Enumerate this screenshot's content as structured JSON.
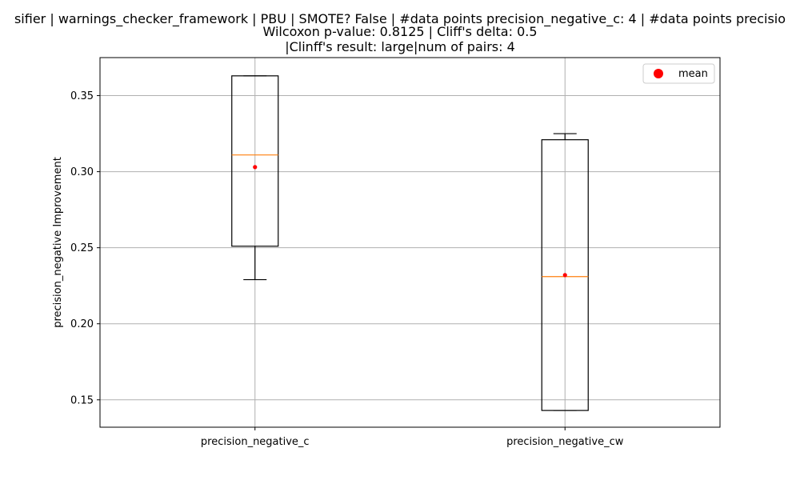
{
  "chart_data": {
    "type": "boxplot",
    "title_lines": [
      "sifier | warnings_checker_framework | PBU | SMOTE? False | #data points precision_negative_c: 4 | #data points precisio",
      "Wilcoxon p-value: 0.8125 | Cliff's delta: 0.5",
      "|Clinff's result: large|num of pairs: 4"
    ],
    "ylabel": "precision_negative Improvement",
    "xlabel": "",
    "categories": [
      "precision_negative_c",
      "precision_negative_cw"
    ],
    "ylim": [
      0.132,
      0.375
    ],
    "yticks": [
      0.15,
      0.2,
      0.25,
      0.3,
      0.35
    ],
    "ytick_labels": [
      "0.15",
      "0.20",
      "0.25",
      "0.30",
      "0.35"
    ],
    "grid": true,
    "legend": {
      "placement": "top-right",
      "entries": [
        "mean"
      ]
    },
    "boxes": [
      {
        "category": "precision_negative_c",
        "whisker_low": 0.229,
        "q1": 0.251,
        "median": 0.311,
        "q3": 0.363,
        "whisker_high": 0.363,
        "mean": 0.303
      },
      {
        "category": "precision_negative_cw",
        "whisker_low": 0.143,
        "q1": 0.143,
        "median": 0.231,
        "q3": 0.321,
        "whisker_high": 0.325,
        "mean": 0.232
      }
    ],
    "colors": {
      "box": "#000000",
      "median": "#ff7f0e",
      "mean": "#ff0000",
      "grid": "#b0b0b0"
    }
  }
}
